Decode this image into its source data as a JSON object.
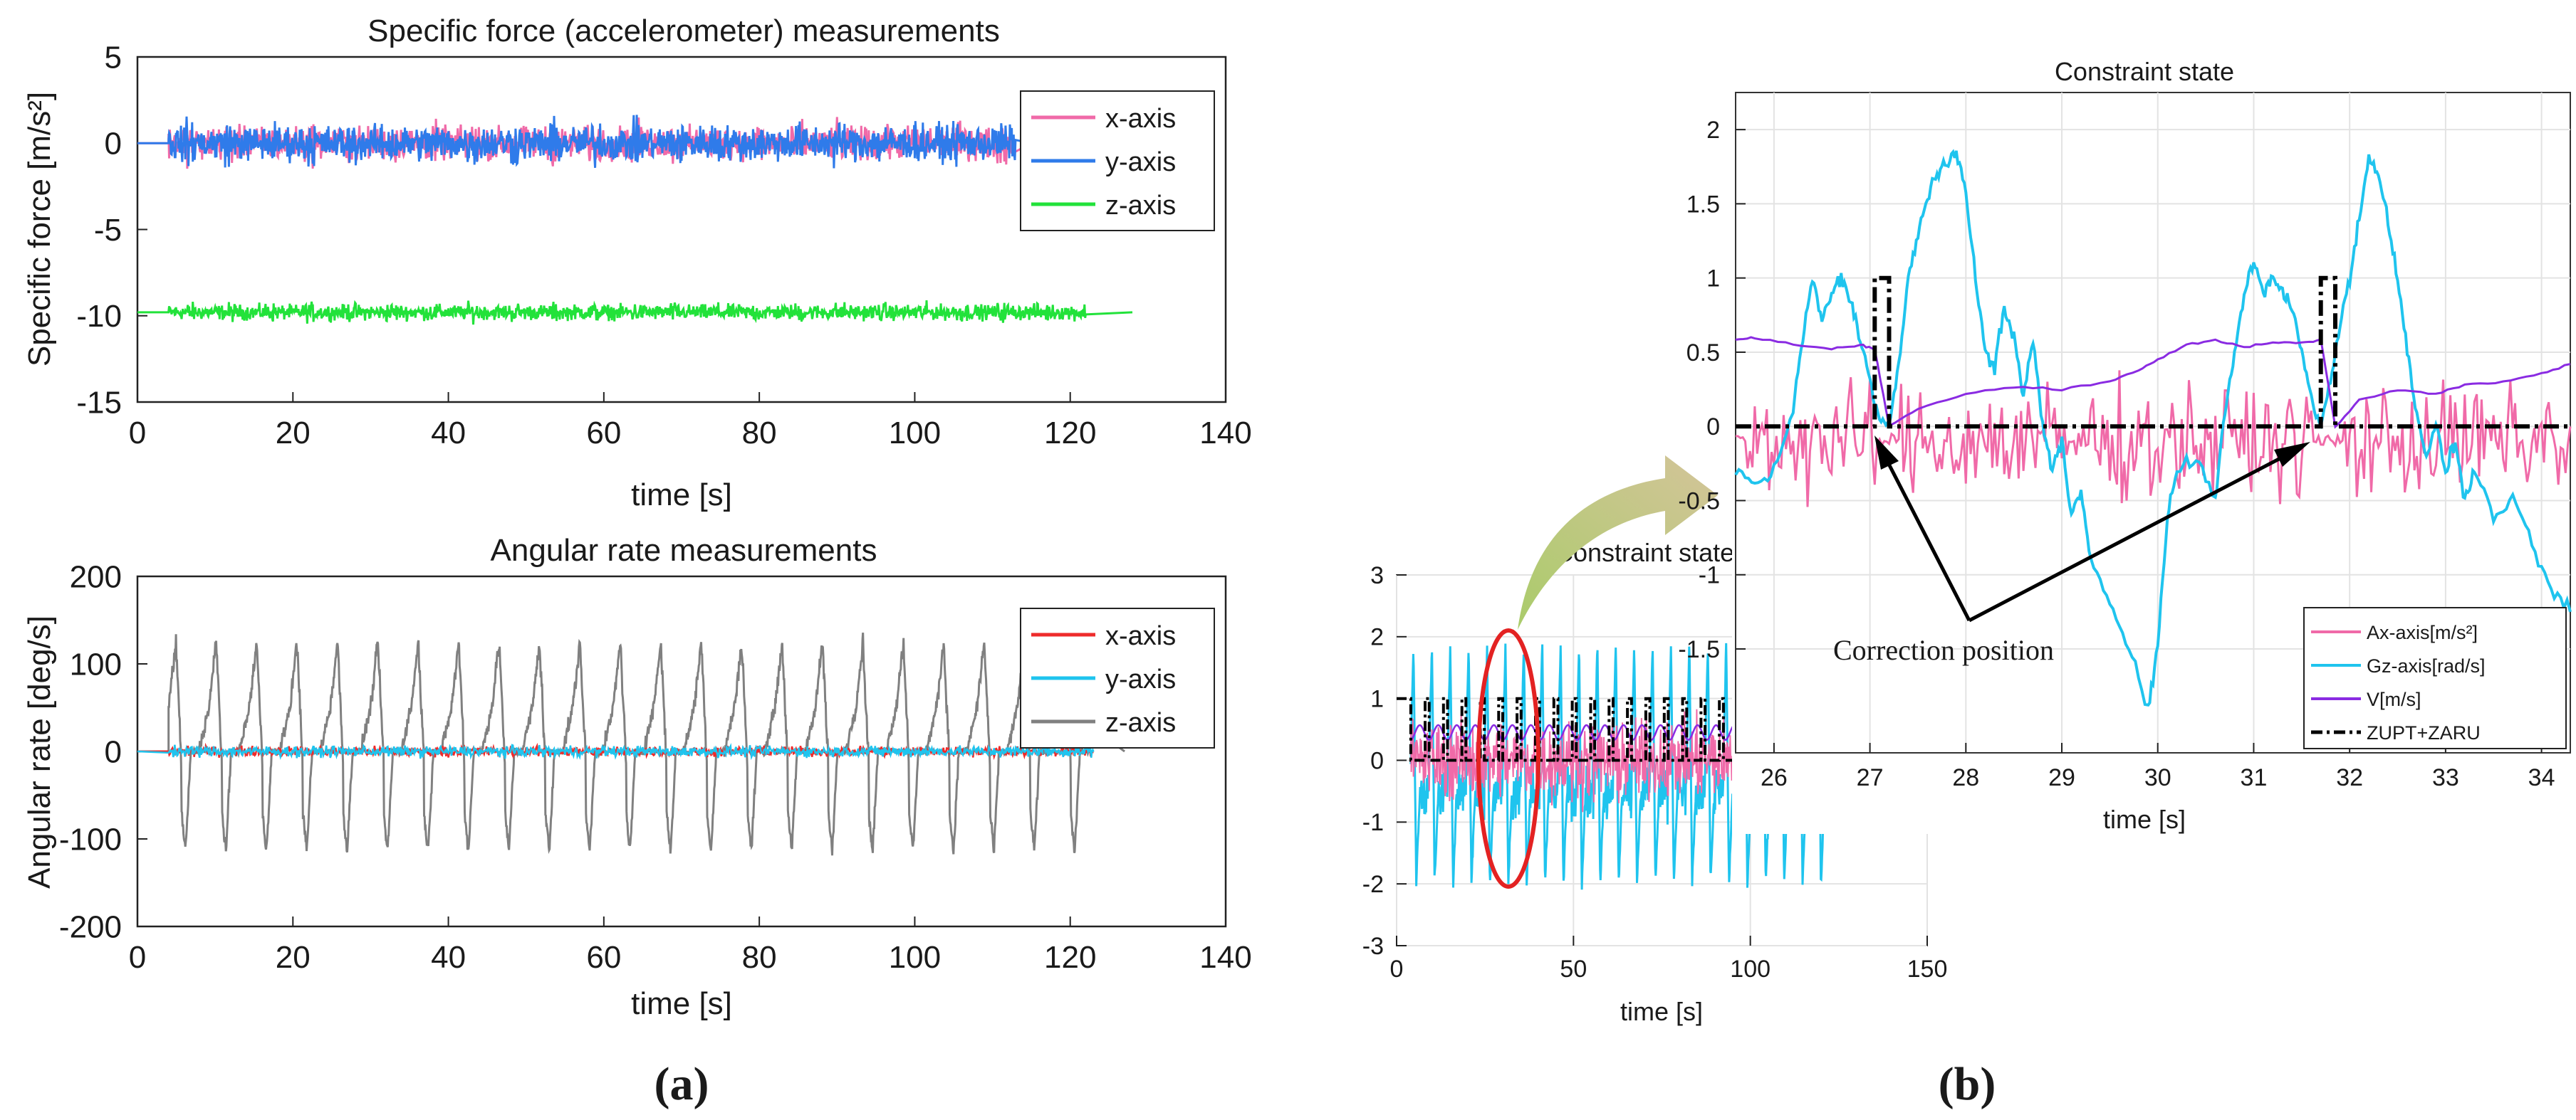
{
  "figure": {
    "panel_a_label": "(a)",
    "panel_b_label": "(b)",
    "annotation": "Correction  position"
  },
  "colors": {
    "pink": "#f06aa8",
    "blue": "#2f7bea",
    "green": "#22e23a",
    "red": "#ee2b2b",
    "cyan": "#1fc4ee",
    "gray": "#808080",
    "purple": "#8a2be2",
    "black": "#000000",
    "ellipse": "#e32222",
    "arrow_start": "#a8cc68",
    "arrow_end": "#d4c49a"
  },
  "chart_data": [
    {
      "id": "specific-force",
      "type": "line",
      "title": "Specific force (accelerometer) measurements",
      "xlabel": "time [s]",
      "ylabel": "Specific force [m/s²]",
      "xlim": [
        0,
        140
      ],
      "ylim": [
        -15,
        5
      ],
      "xticks": [
        "0",
        "20",
        "40",
        "60",
        "80",
        "100",
        "120",
        "140"
      ],
      "yticks": [
        "-15",
        "-10",
        "-5",
        "0",
        "5"
      ],
      "legend_position": "top-right",
      "series": [
        {
          "name": "x-axis",
          "color": "#f06aa8",
          "t_start": 4,
          "t_end": 113,
          "baseline": 0,
          "amplitude": 1.5,
          "extend_flat_to": 115
        },
        {
          "name": "y-axis",
          "color": "#2f7bea",
          "t_start": 4,
          "t_end": 113,
          "baseline": 0,
          "amplitude": 1.6,
          "extend_flat_to": 115
        },
        {
          "name": "z-axis",
          "color": "#22e23a",
          "t_start": 4,
          "t_end": 122,
          "baseline": -9.8,
          "amplitude": 0.7,
          "extend_flat_to": 128
        }
      ]
    },
    {
      "id": "angular-rate",
      "type": "line",
      "title": "Angular rate measurements",
      "xlabel": "time [s]",
      "ylabel": "Angular rate  [deg/s]",
      "xlim": [
        0,
        140
      ],
      "ylim": [
        -200,
        200
      ],
      "xticks": [
        "0",
        "20",
        "40",
        "60",
        "80",
        "100",
        "120",
        "140"
      ],
      "yticks": [
        "-200",
        "-100",
        "0",
        "100",
        "200"
      ],
      "legend_position": "top-right",
      "series": [
        {
          "name": "x-axis",
          "color": "#ee2b2b",
          "t_start": 4,
          "t_end": 123,
          "baseline": 0,
          "amplitude": 20
        },
        {
          "name": "y-axis",
          "color": "#1fc4ee",
          "t_start": 4,
          "t_end": 123,
          "baseline": 0,
          "amplitude": 22
        },
        {
          "name": "z-axis",
          "color": "#808080",
          "t_start": 4,
          "t_end": 123,
          "baseline": 0,
          "peak": 125,
          "trough": -115,
          "step_period": 5.2,
          "extend_flat_to": 127
        }
      ]
    },
    {
      "id": "constraint-state-overview",
      "type": "line",
      "title": "Constraint state",
      "xlabel": "time [s]",
      "ylabel": "",
      "xlim": [
        0,
        150
      ],
      "ylim": [
        -3,
        3
      ],
      "xticks": [
        "0",
        "50",
        "100",
        "150"
      ],
      "yticks": [
        "-3",
        "-2",
        "-1",
        "0",
        "1",
        "2",
        "3"
      ],
      "highlight_ellipse_center_x": 35,
      "series": [
        {
          "name": "Ax-axis[m/s²]",
          "color": "#f06aa8",
          "t_start": 4,
          "t_end": 123,
          "amplitude": 1.5
        },
        {
          "name": "Gz-axis[rad/s]",
          "color": "#1fc4ee",
          "t_start": 4,
          "t_end": 123,
          "peak": 1.9,
          "trough": -2.0,
          "step_period": 5.2
        },
        {
          "name": "V[m/s]",
          "color": "#8a2be2",
          "t_start": 4,
          "t_end": 123,
          "level": 0.5
        },
        {
          "name": "ZUPT+ZARU",
          "color": "#000000",
          "t_start": 4,
          "t_end": 123,
          "high": 1,
          "low": 0,
          "step_period": 5.2
        }
      ]
    },
    {
      "id": "constraint-state-zoom",
      "type": "line",
      "title": "Constraint state",
      "xlabel": "time [s]",
      "ylabel": "",
      "xlim": [
        25.6,
        34.3
      ],
      "ylim": [
        -2.2,
        2.25
      ],
      "xticks": [
        "26",
        "27",
        "28",
        "29",
        "30",
        "31",
        "32",
        "33",
        "34"
      ],
      "yticks": [
        "-1.5",
        "-1",
        "-0.5",
        "0",
        "0.5",
        "1",
        "1.5",
        "2"
      ],
      "legend_position": "bottom-right",
      "zupt_pulses": [
        [
          27.05,
          27.2
        ],
        [
          31.7,
          31.85
        ]
      ],
      "correction_points": [
        27.2,
        31.7
      ],
      "gz_keypoints": [
        [
          25.6,
          -0.3
        ],
        [
          25.8,
          -0.4
        ],
        [
          26.0,
          -0.3
        ],
        [
          26.2,
          0.1
        ],
        [
          26.3,
          0.6
        ],
        [
          26.4,
          1.0
        ],
        [
          26.5,
          0.7
        ],
        [
          26.6,
          0.9
        ],
        [
          26.7,
          1.0
        ],
        [
          26.8,
          0.85
        ],
        [
          26.9,
          0.6
        ],
        [
          27.0,
          0.3
        ],
        [
          27.1,
          0.05
        ],
        [
          27.2,
          0.0
        ],
        [
          27.3,
          0.4
        ],
        [
          27.4,
          1.0
        ],
        [
          27.5,
          1.3
        ],
        [
          27.6,
          1.55
        ],
        [
          27.7,
          1.7
        ],
        [
          27.8,
          1.75
        ],
        [
          27.9,
          1.85
        ],
        [
          28.0,
          1.6
        ],
        [
          28.1,
          1.0
        ],
        [
          28.2,
          0.5
        ],
        [
          28.3,
          0.4
        ],
        [
          28.4,
          0.8
        ],
        [
          28.5,
          0.6
        ],
        [
          28.6,
          0.2
        ],
        [
          28.7,
          0.6
        ],
        [
          28.8,
          0.0
        ],
        [
          28.9,
          -0.3
        ],
        [
          29.0,
          -0.1
        ],
        [
          29.1,
          -0.6
        ],
        [
          29.2,
          -0.4
        ],
        [
          29.3,
          -0.9
        ],
        [
          29.5,
          -1.2
        ],
        [
          29.7,
          -1.5
        ],
        [
          29.9,
          -1.9
        ],
        [
          30.0,
          -1.5
        ],
        [
          30.1,
          -0.6
        ],
        [
          30.2,
          -0.3
        ],
        [
          30.4,
          -0.2
        ],
        [
          30.6,
          -0.5
        ],
        [
          30.7,
          0.1
        ],
        [
          30.8,
          0.5
        ],
        [
          30.9,
          0.9
        ],
        [
          31.0,
          1.1
        ],
        [
          31.1,
          0.9
        ],
        [
          31.2,
          1.0
        ],
        [
          31.3,
          0.9
        ],
        [
          31.4,
          0.8
        ],
        [
          31.5,
          0.5
        ],
        [
          31.6,
          0.2
        ],
        [
          31.7,
          0.0
        ],
        [
          31.8,
          0.3
        ],
        [
          31.9,
          0.7
        ],
        [
          32.0,
          1.0
        ],
        [
          32.1,
          1.4
        ],
        [
          32.2,
          1.8
        ],
        [
          32.3,
          1.7
        ],
        [
          32.4,
          1.4
        ],
        [
          32.5,
          1.0
        ],
        [
          32.6,
          0.5
        ],
        [
          32.7,
          0.1
        ],
        [
          32.8,
          -0.2
        ],
        [
          32.9,
          0.0
        ],
        [
          33.0,
          -0.3
        ],
        [
          33.1,
          -0.1
        ],
        [
          33.2,
          -0.5
        ],
        [
          33.3,
          -0.3
        ],
        [
          33.5,
          -0.6
        ],
        [
          33.7,
          -0.5
        ],
        [
          33.9,
          -0.8
        ],
        [
          34.1,
          -1.1
        ],
        [
          34.3,
          -1.25
        ]
      ],
      "v_keypoints": [
        [
          25.6,
          0.58
        ],
        [
          25.8,
          0.6
        ],
        [
          26.2,
          0.55
        ],
        [
          26.6,
          0.52
        ],
        [
          26.9,
          0.55
        ],
        [
          27.05,
          0.52
        ],
        [
          27.2,
          0.0
        ],
        [
          27.5,
          0.12
        ],
        [
          28.0,
          0.22
        ],
        [
          28.5,
          0.27
        ],
        [
          29.0,
          0.25
        ],
        [
          29.5,
          0.3
        ],
        [
          29.8,
          0.38
        ],
        [
          30.0,
          0.45
        ],
        [
          30.3,
          0.55
        ],
        [
          30.6,
          0.58
        ],
        [
          30.9,
          0.54
        ],
        [
          31.2,
          0.56
        ],
        [
          31.5,
          0.57
        ],
        [
          31.7,
          0.58
        ],
        [
          31.85,
          0.0
        ],
        [
          32.1,
          0.18
        ],
        [
          32.5,
          0.25
        ],
        [
          32.9,
          0.22
        ],
        [
          33.2,
          0.28
        ],
        [
          33.6,
          0.3
        ],
        [
          34.0,
          0.35
        ],
        [
          34.3,
          0.42
        ]
      ],
      "series": [
        {
          "name": "Ax-axis[m/s²]",
          "color": "#f06aa8"
        },
        {
          "name": "Gz-axis[rad/s]",
          "color": "#1fc4ee"
        },
        {
          "name": "V[m/s]",
          "color": "#8a2be2"
        },
        {
          "name": "ZUPT+ZARU",
          "color": "#000000"
        }
      ]
    }
  ]
}
